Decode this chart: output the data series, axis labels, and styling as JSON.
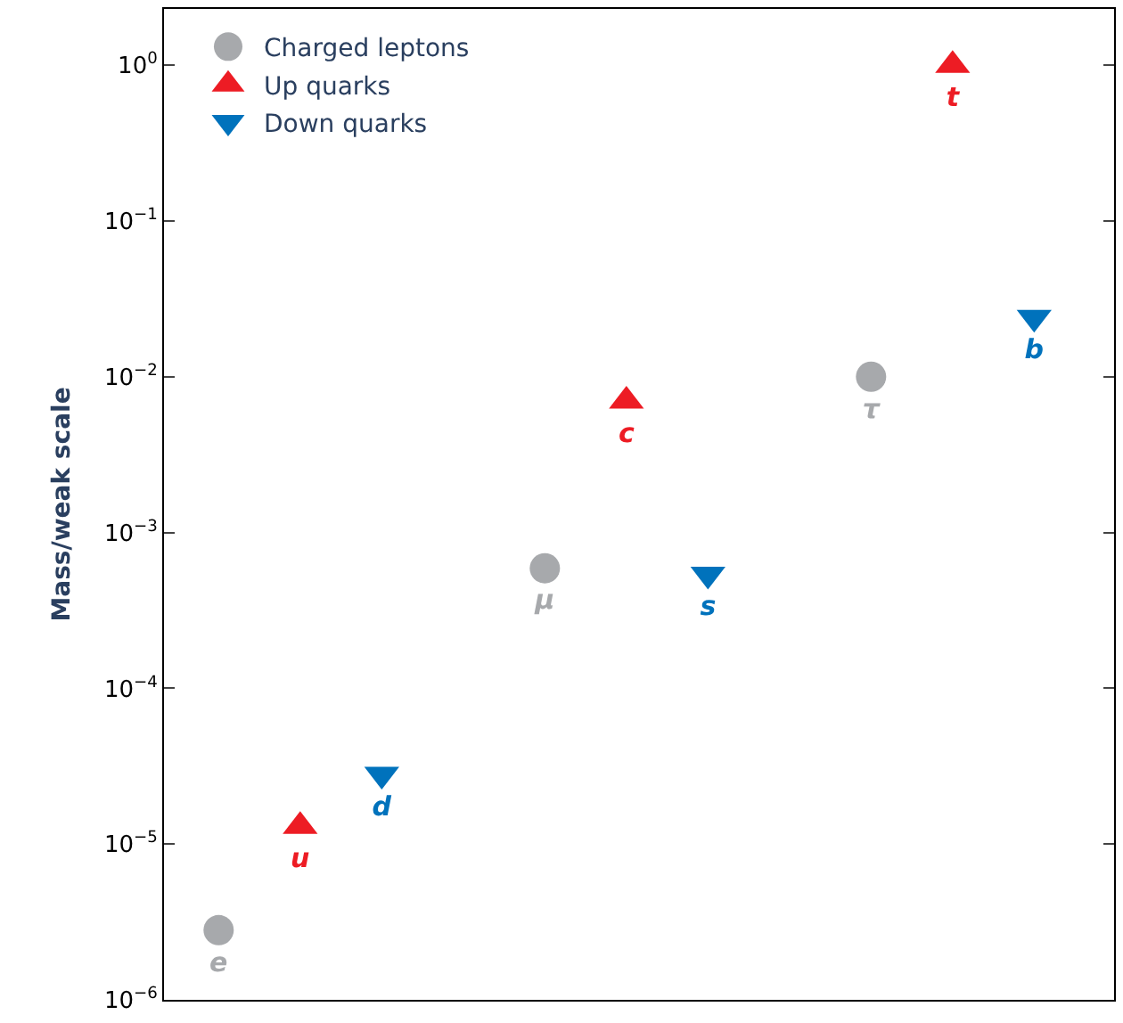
{
  "chart_data": {
    "type": "scatter",
    "ylabel": "Mass/weak scale",
    "categories": [
      null,
      null,
      null,
      null,
      null,
      null,
      null,
      null,
      null,
      null,
      null
    ],
    "series": [
      {
        "name": "Charged leptons",
        "color": "#a7a9ac",
        "marker": "circle",
        "values": [
          2.8e-06,
          null,
          null,
          null,
          0.00059,
          null,
          null,
          null,
          0.01,
          null,
          null
        ],
        "value_labels": [
          "e",
          null,
          null,
          null,
          "μ",
          null,
          null,
          null,
          "τ",
          null,
          null
        ]
      },
      {
        "name": "Up quarks",
        "color": "#ed1c24",
        "marker": "triangle",
        "values": [
          null,
          1.3e-05,
          null,
          null,
          null,
          0.007,
          null,
          null,
          null,
          1.0,
          null
        ],
        "value_labels": [
          null,
          "u",
          null,
          null,
          null,
          "c",
          null,
          null,
          null,
          "t",
          null
        ]
      },
      {
        "name": "Down quarks",
        "color": "#0072bc",
        "marker": "triangle-down",
        "values": [
          null,
          null,
          2.8e-05,
          null,
          null,
          null,
          0.00054,
          null,
          null,
          null,
          0.024
        ],
        "value_labels": [
          null,
          null,
          "d",
          null,
          null,
          null,
          "s",
          null,
          null,
          null,
          "b"
        ]
      }
    ],
    "log": "y",
    "ylim": [
      1e-06,
      2.3
    ],
    "yticks": [
      {
        "value": 1e-06,
        "label": "10$^{−6}$"
      },
      {
        "value": 1e-05,
        "label": "10$^{−5}$"
      },
      {
        "value": 0.0001,
        "label": "10$^{−4}$"
      },
      {
        "value": 0.001,
        "label": "10$^{−3}$"
      },
      {
        "value": 0.01,
        "label": "10$^{−2}$"
      },
      {
        "value": 0.1,
        "label": "10$^{−1}$"
      },
      {
        "value": 1,
        "label": "10$^{0}$"
      }
    ],
    "legend": "top left"
  }
}
